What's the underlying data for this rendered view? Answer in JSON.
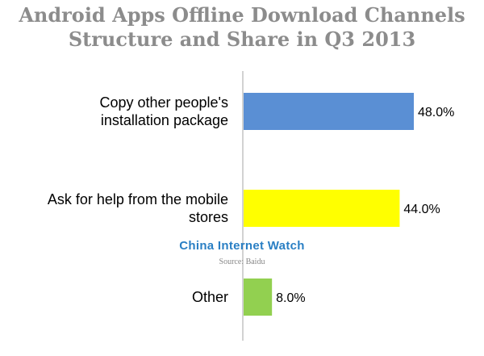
{
  "chart_data": {
    "type": "bar",
    "orientation": "horizontal",
    "title": "Android Apps Offline Download Channels Structure and Share in Q3 2013",
    "title_lines": [
      "Android Apps Offline Download Channels",
      "Structure and Share in Q3 2013"
    ],
    "categories": [
      [
        "Copy other people's",
        "installation package"
      ],
      [
        "Ask for help from the mobile",
        "stores"
      ],
      [
        "Other"
      ]
    ],
    "values": [
      48.0,
      44.0,
      8.0
    ],
    "value_labels": [
      "48.0%",
      "44.0%",
      "8.0%"
    ],
    "colors": [
      "#5a8fd4",
      "#ffff00",
      "#92d050"
    ],
    "xlim": [
      0,
      50
    ],
    "grid": false,
    "legend": "none"
  },
  "watermark": {
    "text": "China Internet Watch",
    "source": "Source: Baidu"
  }
}
